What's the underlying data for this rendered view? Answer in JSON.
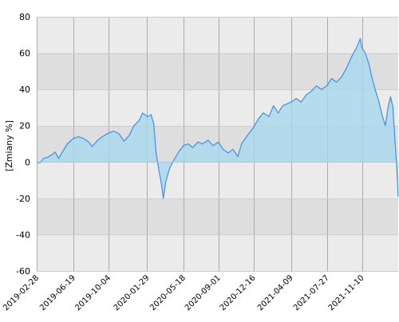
{
  "chart_data": {
    "type": "area",
    "ylabel": "[Zmiany %]",
    "ylim": [
      -60,
      80
    ],
    "yticks": [
      -60,
      -40,
      -20,
      0,
      20,
      40,
      60,
      80
    ],
    "xlim": [
      "2019-02-28",
      "2022-02-28"
    ],
    "xticks": [
      "2019-02-28",
      "2019-06-19",
      "2019-10-04",
      "2020-01-29",
      "2020-05-18",
      "2020-09-01",
      "2020-12-16",
      "2021-04-09",
      "2021-07-27",
      "2021-11-10"
    ],
    "grid": true,
    "band_colors": [
      "#ebebeb",
      "#dedede"
    ],
    "line_color": "#3d8fe8",
    "fill_color": "#a8d8ec",
    "series": [
      {
        "points": [
          [
            "2019-02-28",
            0
          ],
          [
            "2019-03-10",
            -0.5
          ],
          [
            "2019-03-20",
            2
          ],
          [
            "2019-04-01",
            2.5
          ],
          [
            "2019-04-15",
            4
          ],
          [
            "2019-04-25",
            5.5
          ],
          [
            "2019-05-05",
            2
          ],
          [
            "2019-05-15",
            5
          ],
          [
            "2019-06-01",
            10
          ],
          [
            "2019-06-19",
            13
          ],
          [
            "2019-07-05",
            14
          ],
          [
            "2019-07-20",
            13
          ],
          [
            "2019-08-05",
            11
          ],
          [
            "2019-08-15",
            8.5
          ],
          [
            "2019-09-01",
            12
          ],
          [
            "2019-09-15",
            14
          ],
          [
            "2019-10-04",
            16
          ],
          [
            "2019-10-20",
            17
          ],
          [
            "2019-11-05",
            15.5
          ],
          [
            "2019-11-20",
            11.5
          ],
          [
            "2019-12-05",
            14.5
          ],
          [
            "2019-12-20",
            20
          ],
          [
            "2020-01-05",
            23
          ],
          [
            "2020-01-15",
            27
          ],
          [
            "2020-01-29",
            25
          ],
          [
            "2020-02-10",
            26
          ],
          [
            "2020-02-18",
            21
          ],
          [
            "2020-02-25",
            5
          ],
          [
            "2020-03-05",
            -5
          ],
          [
            "2020-03-12",
            -12
          ],
          [
            "2020-03-18",
            -20
          ],
          [
            "2020-03-25",
            -11
          ],
          [
            "2020-04-05",
            -4
          ],
          [
            "2020-04-15",
            0
          ],
          [
            "2020-04-25",
            3
          ],
          [
            "2020-05-05",
            6
          ],
          [
            "2020-05-18",
            9
          ],
          [
            "2020-06-01",
            10
          ],
          [
            "2020-06-15",
            8
          ],
          [
            "2020-07-01",
            11
          ],
          [
            "2020-07-15",
            10
          ],
          [
            "2020-08-01",
            12
          ],
          [
            "2020-08-15",
            9
          ],
          [
            "2020-09-01",
            11
          ],
          [
            "2020-09-15",
            7
          ],
          [
            "2020-10-01",
            5
          ],
          [
            "2020-10-15",
            7
          ],
          [
            "2020-10-30",
            3
          ],
          [
            "2020-11-10",
            10
          ],
          [
            "2020-11-25",
            14
          ],
          [
            "2020-12-16",
            19
          ],
          [
            "2021-01-01",
            24
          ],
          [
            "2021-01-15",
            27
          ],
          [
            "2021-02-01",
            25
          ],
          [
            "2021-02-15",
            31
          ],
          [
            "2021-03-01",
            27
          ],
          [
            "2021-03-15",
            31
          ],
          [
            "2021-04-09",
            33
          ],
          [
            "2021-04-25",
            35
          ],
          [
            "2021-05-10",
            33
          ],
          [
            "2021-05-25",
            37
          ],
          [
            "2021-06-10",
            39
          ],
          [
            "2021-06-25",
            42
          ],
          [
            "2021-07-10",
            40
          ],
          [
            "2021-07-27",
            42
          ],
          [
            "2021-08-10",
            46
          ],
          [
            "2021-08-25",
            44
          ],
          [
            "2021-09-10",
            47
          ],
          [
            "2021-09-25",
            52
          ],
          [
            "2021-10-10",
            58
          ],
          [
            "2021-10-25",
            63
          ],
          [
            "2021-11-05",
            68
          ],
          [
            "2021-11-10",
            63
          ],
          [
            "2021-11-20",
            60
          ],
          [
            "2021-12-01",
            54
          ],
          [
            "2021-12-10",
            47
          ],
          [
            "2021-12-20",
            40
          ],
          [
            "2022-01-01",
            33
          ],
          [
            "2022-01-10",
            26
          ],
          [
            "2022-01-20",
            20
          ],
          [
            "2022-01-28",
            30
          ],
          [
            "2022-02-05",
            36
          ],
          [
            "2022-02-12",
            30
          ],
          [
            "2022-02-18",
            12
          ],
          [
            "2022-02-24",
            -4
          ],
          [
            "2022-02-28",
            -19
          ]
        ]
      }
    ]
  }
}
